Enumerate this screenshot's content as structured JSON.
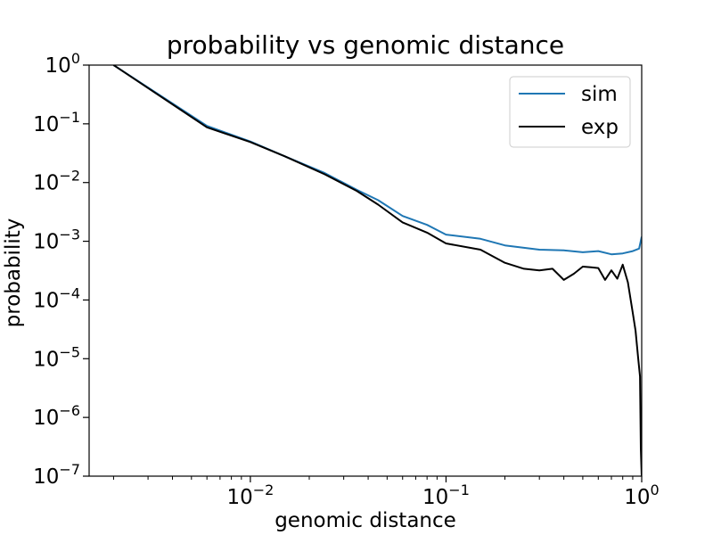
{
  "chart_data": {
    "type": "line",
    "title": "probability vs genomic distance",
    "xlabel": "genomic distance",
    "ylabel": "probability",
    "xscale": "log",
    "yscale": "log",
    "xlim": [
      0.0015,
      1.0
    ],
    "ylim": [
      1e-07,
      1.0
    ],
    "x_ticks": [
      {
        "value": 0.01,
        "base": "10",
        "exp": "−2"
      },
      {
        "value": 0.1,
        "base": "10",
        "exp": "−1"
      },
      {
        "value": 1.0,
        "base": "10",
        "exp": "0"
      }
    ],
    "y_ticks": [
      {
        "value": 1.0,
        "base": "10",
        "exp": "0"
      },
      {
        "value": 0.1,
        "base": "10",
        "exp": "−1"
      },
      {
        "value": 0.01,
        "base": "10",
        "exp": "−2"
      },
      {
        "value": 0.001,
        "base": "10",
        "exp": "−3"
      },
      {
        "value": 0.0001,
        "base": "10",
        "exp": "−4"
      },
      {
        "value": 1e-05,
        "base": "10",
        "exp": "−5"
      },
      {
        "value": 1e-06,
        "base": "10",
        "exp": "−6"
      },
      {
        "value": 1e-07,
        "base": "10",
        "exp": "−7"
      }
    ],
    "grid": false,
    "legend_position": "top-right",
    "series": [
      {
        "name": "sim",
        "color": "#1f77b4",
        "x": [
          0.002,
          0.006,
          0.01,
          0.015,
          0.024,
          0.035,
          0.045,
          0.06,
          0.08,
          0.1,
          0.15,
          0.2,
          0.3,
          0.4,
          0.5,
          0.6,
          0.7,
          0.8,
          0.9,
          0.97,
          1.0
        ],
        "y": [
          1.0,
          0.092,
          0.05,
          0.028,
          0.0145,
          0.0075,
          0.005,
          0.0027,
          0.0019,
          0.0013,
          0.0011,
          0.00085,
          0.00072,
          0.0007,
          0.00065,
          0.00068,
          0.0006,
          0.00062,
          0.00068,
          0.00075,
          0.0012
        ]
      },
      {
        "name": "exp",
        "color": "#000000",
        "x": [
          0.002,
          0.006,
          0.01,
          0.015,
          0.024,
          0.035,
          0.045,
          0.06,
          0.08,
          0.1,
          0.15,
          0.2,
          0.25,
          0.3,
          0.35,
          0.4,
          0.45,
          0.5,
          0.55,
          0.6,
          0.65,
          0.7,
          0.75,
          0.8,
          0.85,
          0.9,
          0.93,
          0.96,
          0.98,
          0.99,
          1.0
        ],
        "y": [
          1.0,
          0.087,
          0.049,
          0.028,
          0.0138,
          0.0072,
          0.0042,
          0.0021,
          0.0014,
          0.00092,
          0.00072,
          0.00043,
          0.00034,
          0.00032,
          0.00034,
          0.00022,
          0.00028,
          0.00037,
          0.00036,
          0.00035,
          0.00022,
          0.00032,
          0.00023,
          0.0004,
          0.0002,
          6e-05,
          3e-05,
          1e-05,
          5e-06,
          3e-07,
          1e-07
        ]
      }
    ]
  }
}
